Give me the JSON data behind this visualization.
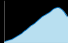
{
  "x": [
    0,
    1,
    2,
    3,
    4,
    5,
    6,
    7,
    8,
    9,
    10,
    11,
    12,
    13,
    14,
    15,
    16,
    17,
    18,
    19,
    20,
    21,
    22,
    23,
    24,
    25,
    26,
    27,
    28,
    29,
    30,
    31,
    32,
    33,
    34,
    35,
    36,
    37,
    38,
    39,
    40
  ],
  "y": [
    0.02,
    0.03,
    0.04,
    0.05,
    0.06,
    0.07,
    0.09,
    0.11,
    0.13,
    0.15,
    0.17,
    0.19,
    0.22,
    0.25,
    0.27,
    0.3,
    0.33,
    0.36,
    0.38,
    0.4,
    0.43,
    0.46,
    0.49,
    0.52,
    0.55,
    0.57,
    0.59,
    0.61,
    0.63,
    0.65,
    0.68,
    0.71,
    0.73,
    0.74,
    0.75,
    0.74,
    0.72,
    0.69,
    0.65,
    0.6,
    0.55
  ],
  "line_color": "#0077cc",
  "fill_color": "#b8dff0",
  "background_color": "#000000",
  "plot_bg_color": "#000000",
  "left_line_color": "#777777",
  "ylim": [
    0,
    0.9
  ],
  "xlim": [
    0,
    40
  ]
}
